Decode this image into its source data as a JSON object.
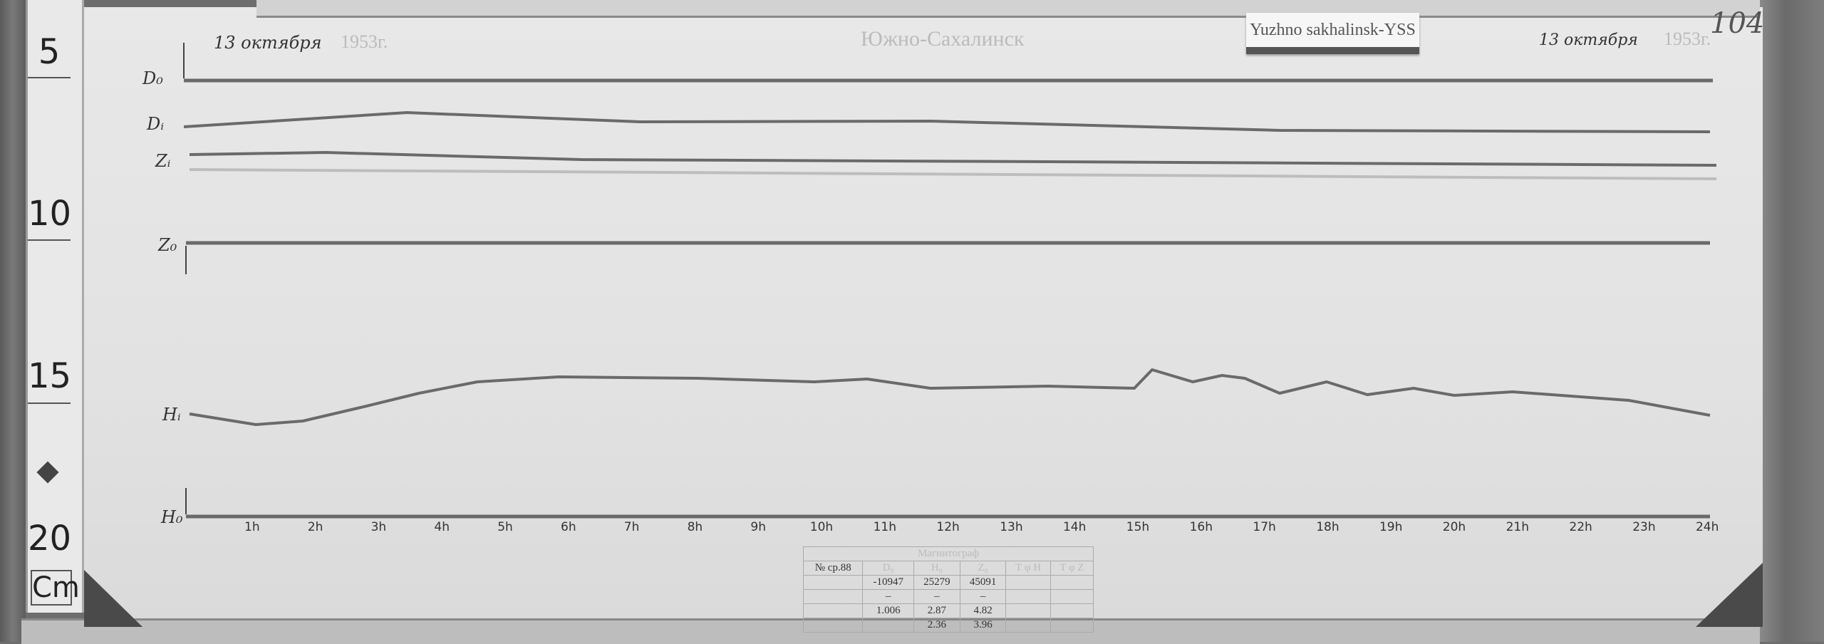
{
  "station_card": "Yuzhno sakhalinsk-YSS",
  "header": {
    "date_left": "13 октября",
    "year_left": "1953г.",
    "station_stamp": "Южно-Сахалинск",
    "date_right": "13 октября",
    "year_right": "1953г.",
    "sheet_number": "104"
  },
  "ruler": {
    "marks": [
      "5",
      "10",
      "15",
      "20"
    ],
    "unit": "Cm"
  },
  "trace_labels": {
    "d0": "D₀",
    "di": "Dᵢ",
    "zi": "Zᵢ",
    "z0": "Z₀",
    "hi": "Hᵢ",
    "h0": "H₀"
  },
  "hours": [
    "1h",
    "2h",
    "3h",
    "4h",
    "5h",
    "6h",
    "7h",
    "8h",
    "9h",
    "10h",
    "11h",
    "12h",
    "13h",
    "14h",
    "15h",
    "16h",
    "17h",
    "18h",
    "19h",
    "20h",
    "21h",
    "22h",
    "23h",
    "24h"
  ],
  "table": {
    "title": "Магнитограф",
    "instrument": "№ ср.88",
    "columns": [
      "D₀",
      "H₀",
      "Z₀",
      "T φ H",
      "T φ Z"
    ],
    "rows": [
      {
        "label": "",
        "values": [
          "-10947",
          "25279",
          "45091"
        ]
      },
      {
        "label": "",
        "values": [
          "–",
          "–",
          "–"
        ]
      },
      {
        "label": "",
        "values": [
          "1.006",
          "2.87",
          "4.82"
        ]
      },
      {
        "label": "",
        "values": [
          "",
          "2.36",
          "3.96"
        ]
      }
    ]
  },
  "colors": {
    "trace": "#6a6a6a",
    "paper": "#e4e4e4"
  }
}
